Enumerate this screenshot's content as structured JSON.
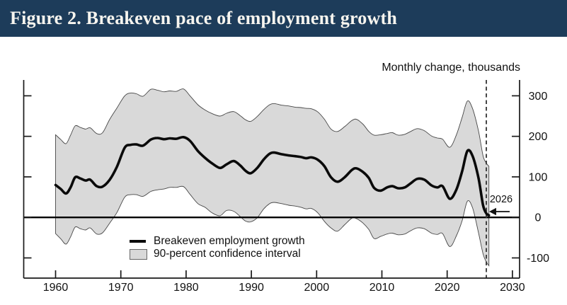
{
  "header": {
    "title": "Figure 2. Breakeven pace of employment growth",
    "bg_color": "#1d3c5a",
    "text_color": "#f7f5ef"
  },
  "chart_data": {
    "type": "line",
    "title": "Figure 2. Breakeven pace of employment growth",
    "ylabel": "Monthly change, thousands",
    "xlabel": "",
    "grid": false,
    "legend_position": "inside-lower-left",
    "legend": [
      "Breakeven employment growth",
      "90-percent confidence interval"
    ],
    "x_ticks": [
      1960,
      1970,
      1980,
      1990,
      2000,
      2010,
      2020,
      2030
    ],
    "y_ticks": [
      300,
      200,
      100,
      0,
      -100
    ],
    "xlim": [
      1955.1,
      2031.1
    ],
    "ylim": [
      -150,
      339
    ],
    "zero_line": true,
    "band_fill": "#d9d9d9",
    "band_edge_color": "#474747",
    "line_color": "#0a0a0a",
    "annotation": {
      "label": "2026",
      "vline_year": 2026,
      "arrow": "left"
    },
    "x": [
      1960,
      1960.8,
      1961.6,
      1962.3,
      1963,
      1963.8,
      1964.6,
      1965.3,
      1966.3,
      1967.2,
      1968.3,
      1969.4,
      1970.6,
      1971.5,
      1972.4,
      1973.4,
      1974.6,
      1975.6,
      1976.6,
      1977.5,
      1978.5,
      1979.6,
      1980.6,
      1981.8,
      1982.9,
      1984,
      1985.2,
      1986.2,
      1987.3,
      1988.3,
      1989.1,
      1989.9,
      1990.9,
      1991.9,
      1992.8,
      1993.5,
      1994.6,
      1995.7,
      1996.7,
      1997.6,
      1998.4,
      1999.2,
      2000.2,
      2001.2,
      2002.2,
      2003.2,
      2004.3,
      2005.4,
      2006.1,
      2007.1,
      2008,
      2008.8,
      2009.8,
      2010.8,
      2011.6,
      2012.5,
      2013.5,
      2014.4,
      2015.4,
      2016.5,
      2017.6,
      2018.5,
      2019.3,
      2020.4,
      2021.4,
      2022.3,
      2023.1,
      2023.9,
      2024.8,
      2025.5,
      2026,
      2026.4
    ],
    "series": [
      {
        "name": "Breakeven employment growth",
        "values": [
          80,
          70,
          59,
          74,
          99,
          96,
          91,
          93,
          77,
          76,
          93,
          125,
          172,
          179,
          180,
          177,
          192,
          196,
          193,
          195,
          194,
          198,
          189,
          164,
          147,
          133,
          122,
          131,
          139,
          128,
          115,
          109,
          122,
          143,
          157,
          160,
          156,
          153,
          151,
          149,
          146,
          148,
          142,
          126,
          99,
          88,
          99,
          117,
          121,
          112,
          97,
          73,
          66,
          74,
          77,
          72,
          74,
          84,
          95,
          93,
          79,
          74,
          77,
          46,
          68,
          114,
          164,
          151,
          97,
          30,
          10,
          5
        ]
      },
      {
        "name": "90-percent confidence interval lower",
        "values": [
          -40,
          -53,
          -66,
          -48,
          -24,
          -28,
          -31,
          -26,
          -41,
          -38,
          -14,
          12,
          50,
          56,
          56,
          52,
          64,
          68,
          70,
          74,
          74,
          76,
          57,
          34,
          25,
          11,
          4,
          17,
          15,
          2,
          -9,
          -11,
          -1,
          21,
          34,
          37,
          34,
          30,
          28,
          25,
          21,
          22,
          11,
          -10,
          -26,
          -34,
          -18,
          -2,
          -3,
          -14,
          -30,
          -52,
          -47,
          -41,
          -39,
          -43,
          -41,
          -33,
          -26,
          -28,
          -39,
          -42,
          -40,
          -72,
          -46,
          -8,
          40,
          23,
          -38,
          -90,
          -110,
          -119
        ]
      },
      {
        "name": "90-percent confidence interval upper",
        "values": [
          204,
          192,
          182,
          203,
          226,
          222,
          218,
          221,
          207,
          209,
          242,
          270,
          300,
          307,
          305,
          299,
          316,
          314,
          310,
          312,
          311,
          317,
          300,
          278,
          265,
          256,
          250,
          257,
          261,
          251,
          241,
          237,
          249,
          266,
          278,
          281,
          277,
          275,
          272,
          271,
          269,
          268,
          260,
          242,
          218,
          212,
          224,
          239,
          242,
          230,
          212,
          203,
          204,
          207,
          209,
          203,
          205,
          212,
          219,
          214,
          201,
          196,
          193,
          173,
          203,
          247,
          287,
          268,
          213,
          152,
          134,
          126
        ]
      }
    ]
  }
}
